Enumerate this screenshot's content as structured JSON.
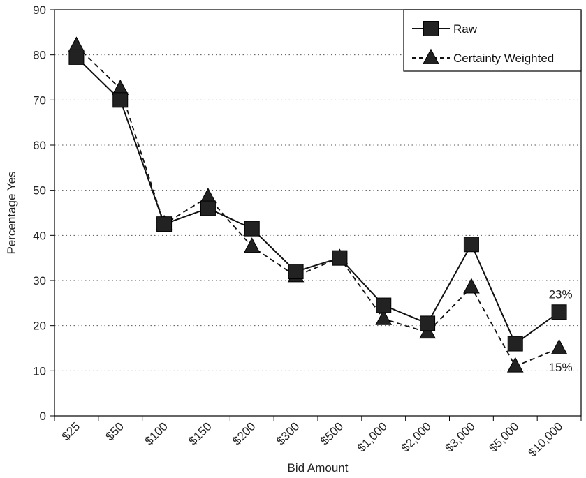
{
  "chart_data": {
    "type": "line",
    "title": "",
    "xlabel": "Bid Amount",
    "ylabel": "Percentage Yes",
    "ylim": [
      0,
      90
    ],
    "yticks": [
      0,
      10,
      20,
      30,
      40,
      50,
      60,
      70,
      80,
      90
    ],
    "grid": "horizontal dotted",
    "legend_position": "top-right",
    "categories": [
      "$25",
      "$50",
      "$100",
      "$150",
      "$200",
      "$300",
      "$500",
      "$1,000",
      "$2,000",
      "$3,000",
      "$5,000",
      "$10,000"
    ],
    "series": [
      {
        "name": "Raw",
        "marker": "square",
        "line": "solid",
        "values": [
          79.5,
          70,
          42.5,
          46,
          41.5,
          32,
          35,
          24.5,
          20.5,
          38,
          16,
          23
        ]
      },
      {
        "name": "Certainty Weighted",
        "marker": "triangle",
        "line": "dashed",
        "values": [
          82,
          72.5,
          42.5,
          48.5,
          37.5,
          31,
          35,
          21.5,
          18.5,
          28.5,
          11,
          15
        ]
      }
    ],
    "annotations": [
      {
        "text": "23%",
        "series": "Raw",
        "category": "$10,000"
      },
      {
        "text": "15%",
        "series": "Certainty Weighted",
        "category": "$10,000"
      }
    ]
  }
}
